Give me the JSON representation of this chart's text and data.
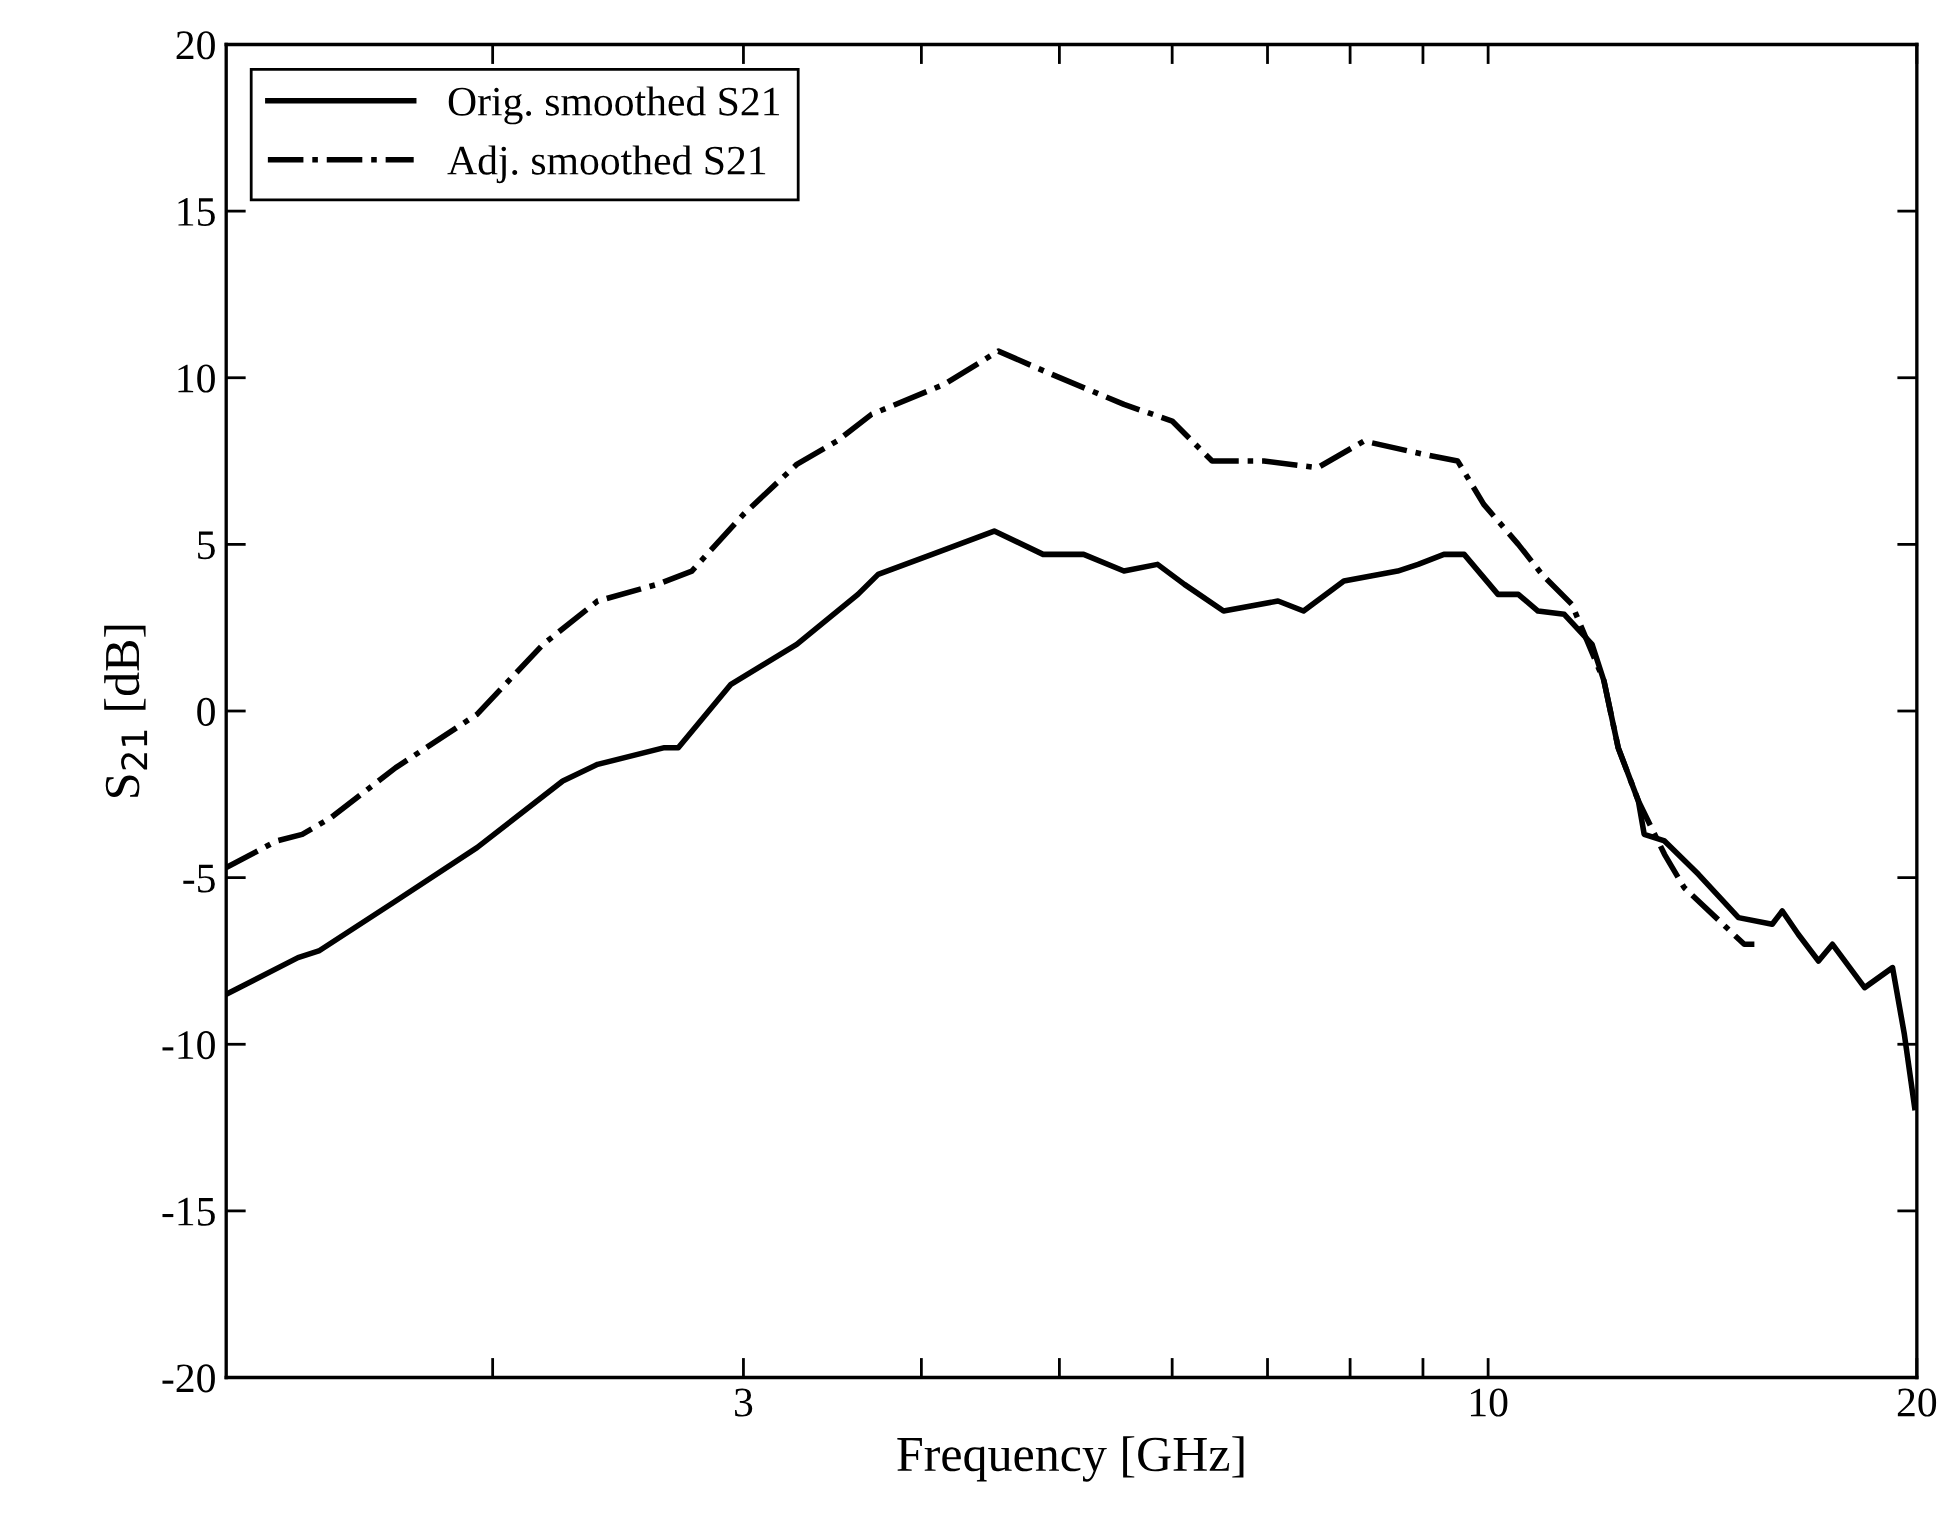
{
  "chart_data": {
    "type": "line",
    "xlabel": "Frequency [GHz]",
    "ylabel": "S$_{21}$ [dB]",
    "log": "x",
    "grid": false,
    "legend": "top left",
    "marker": "none",
    "xlim": [
      1.3,
      20
    ],
    "xticks": [
      {
        "value": 2,
        "label": null
      },
      3,
      {
        "value": 4,
        "label": null
      },
      {
        "value": 5,
        "label": null
      },
      {
        "value": 6,
        "label": null
      },
      {
        "value": 7,
        "label": null
      },
      {
        "value": 8,
        "label": null
      },
      {
        "value": 9,
        "label": null
      },
      10,
      20
    ],
    "ylim": [
      -20,
      20
    ],
    "yticks": [
      -20,
      -15,
      -10,
      -5,
      0,
      5,
      10,
      15,
      20
    ],
    "series": [
      {
        "name": "Orig. smoothed S21",
        "color": "#000000",
        "line_style": "solid",
        "x": [
          1.3,
          1.46,
          1.51,
          1.71,
          1.95,
          2.24,
          2.37,
          2.64,
          2.7,
          2.94,
          3.27,
          3.61,
          3.73,
          4.07,
          4.5,
          4.87,
          5.2,
          5.55,
          5.86,
          6.12,
          6.52,
          7.12,
          7.42,
          7.92,
          8.64,
          8.93,
          9.31,
          9.62,
          10.16,
          10.5,
          10.84,
          11.31,
          11.83,
          12.06,
          12.34,
          12.75,
          12.87,
          13.3,
          14.05,
          14.99,
          15.83,
          16.09,
          16.51,
          17.06,
          17.45,
          18.38,
          19.23,
          19.6,
          19.93
        ],
        "values": [
          -8.5,
          -7.4,
          -7.2,
          -5.7,
          -4.1,
          -2.1,
          -1.6,
          -1.1,
          -1.1,
          0.8,
          2.0,
          3.5,
          4.1,
          4.7,
          5.4,
          4.7,
          4.7,
          4.2,
          4.4,
          3.8,
          3.0,
          3.3,
          3.0,
          3.9,
          4.2,
          4.4,
          4.7,
          4.7,
          3.5,
          3.5,
          3.0,
          2.9,
          2.0,
          0.9,
          -1.1,
          -2.7,
          -3.7,
          -3.9,
          -4.9,
          -6.2,
          -6.4,
          -6.0,
          -6.7,
          -7.5,
          -7.0,
          -8.3,
          -7.7,
          -9.7,
          -11.9
        ]
      },
      {
        "name": "Adj. smoothed S21",
        "color": "#000000",
        "line_style": "dashdot",
        "x": [
          1.3,
          1.41,
          1.47,
          1.54,
          1.71,
          1.95,
          2.17,
          2.37,
          2.61,
          2.76,
          3.0,
          3.27,
          3.49,
          3.69,
          4.15,
          4.53,
          4.94,
          5.55,
          6.0,
          6.4,
          6.96,
          7.59,
          8.18,
          9.01,
          9.52,
          9.93,
          10.5,
          10.91,
          11.45,
          12.06,
          12.34,
          12.75,
          13.3,
          13.73,
          15.13,
          15.38
        ],
        "values": [
          -4.7,
          -3.9,
          -3.7,
          -3.2,
          -1.7,
          -0.1,
          2.0,
          3.3,
          3.8,
          4.2,
          5.9,
          7.4,
          8.1,
          8.9,
          9.8,
          10.8,
          10.1,
          9.2,
          8.7,
          7.5,
          7.5,
          7.3,
          8.1,
          7.7,
          7.5,
          6.2,
          5.0,
          4.1,
          3.2,
          0.9,
          -1.1,
          -2.7,
          -4.3,
          -5.3,
          -7.0,
          -7.0
        ]
      }
    ]
  }
}
